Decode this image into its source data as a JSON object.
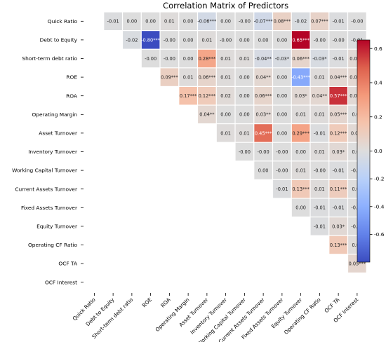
{
  "chart_data": {
    "type": "heatmap",
    "title": "Correlation Matrix of Predictors",
    "rows": [
      "Quick Ratio",
      "Debt to Equity",
      "Short-term debt ratio",
      "ROE",
      "ROA",
      "Operating Margin",
      "Asset Turnover",
      "Inventory Turnover",
      "Working Capital Turnover",
      "Current Assets Turnover",
      "Fixed Assets Turnover",
      "Equity Turnover",
      "Operating CF Ratio",
      "OCF TA",
      "OCF Interest"
    ],
    "columns": [
      "Quick Ratio",
      "Debt to Equity",
      "Short-term debt ratio",
      "ROE",
      "ROA",
      "Operating Margin",
      "Asset Turnover",
      "Inventory Turnover",
      "Working Capital Turnover",
      "Current Assets Turnover",
      "Fixed Assets Turnover",
      "Equity Turnover",
      "Operating CF Ratio",
      "OCF TA",
      "OCF Interest"
    ],
    "cells": [
      {
        "row": 0,
        "col": 1,
        "value": -0.01,
        "label": "-0.01"
      },
      {
        "row": 0,
        "col": 2,
        "value": 0.0,
        "label": "0.00"
      },
      {
        "row": 0,
        "col": 3,
        "value": 0.0,
        "label": "0.00"
      },
      {
        "row": 0,
        "col": 4,
        "value": 0.01,
        "label": "0.01"
      },
      {
        "row": 0,
        "col": 5,
        "value": 0.0,
        "label": "0.00"
      },
      {
        "row": 0,
        "col": 6,
        "value": -0.06,
        "label": "-0.06***"
      },
      {
        "row": 0,
        "col": 7,
        "value": 0.0,
        "label": "0.00"
      },
      {
        "row": 0,
        "col": 8,
        "value": -0.0,
        "label": "-0.00"
      },
      {
        "row": 0,
        "col": 9,
        "value": -0.07,
        "label": "-0.07***"
      },
      {
        "row": 0,
        "col": 10,
        "value": 0.08,
        "label": "0.08***"
      },
      {
        "row": 0,
        "col": 11,
        "value": -0.02,
        "label": "-0.02"
      },
      {
        "row": 0,
        "col": 12,
        "value": 0.07,
        "label": "0.07***"
      },
      {
        "row": 0,
        "col": 13,
        "value": -0.01,
        "label": "-0.01"
      },
      {
        "row": 0,
        "col": 14,
        "value": -0.0,
        "label": "-0.00"
      },
      {
        "row": 1,
        "col": 2,
        "value": -0.02,
        "label": "-0.02"
      },
      {
        "row": 1,
        "col": 3,
        "value": -0.8,
        "label": "-0.80***"
      },
      {
        "row": 1,
        "col": 4,
        "value": -0.0,
        "label": "-0.00"
      },
      {
        "row": 1,
        "col": 5,
        "value": 0.0,
        "label": "0.00"
      },
      {
        "row": 1,
        "col": 6,
        "value": 0.01,
        "label": "0.01"
      },
      {
        "row": 1,
        "col": 7,
        "value": -0.0,
        "label": "-0.00"
      },
      {
        "row": 1,
        "col": 8,
        "value": 0.0,
        "label": "0.00"
      },
      {
        "row": 1,
        "col": 9,
        "value": 0.0,
        "label": "0.00"
      },
      {
        "row": 1,
        "col": 10,
        "value": 0.0,
        "label": "0.00"
      },
      {
        "row": 1,
        "col": 11,
        "value": 0.65,
        "label": "0.65***"
      },
      {
        "row": 1,
        "col": 12,
        "value": -0.0,
        "label": "-0.00"
      },
      {
        "row": 1,
        "col": 13,
        "value": -0.0,
        "label": "-0.00"
      },
      {
        "row": 1,
        "col": 14,
        "value": -0.01,
        "label": "-0.01"
      },
      {
        "row": 2,
        "col": 3,
        "value": -0.0,
        "label": "-0.00"
      },
      {
        "row": 2,
        "col": 4,
        "value": -0.0,
        "label": "-0.00"
      },
      {
        "row": 2,
        "col": 5,
        "value": 0.0,
        "label": "0.00"
      },
      {
        "row": 2,
        "col": 6,
        "value": 0.28,
        "label": "0.28***"
      },
      {
        "row": 2,
        "col": 7,
        "value": 0.01,
        "label": "0.01"
      },
      {
        "row": 2,
        "col": 8,
        "value": 0.01,
        "label": "0.01"
      },
      {
        "row": 2,
        "col": 9,
        "value": -0.04,
        "label": "-0.04**"
      },
      {
        "row": 2,
        "col": 10,
        "value": -0.03,
        "label": "-0.03*"
      },
      {
        "row": 2,
        "col": 11,
        "value": 0.06,
        "label": "0.06***"
      },
      {
        "row": 2,
        "col": 12,
        "value": -0.03,
        "label": "-0.03*"
      },
      {
        "row": 2,
        "col": 13,
        "value": -0.01,
        "label": "-0.01"
      },
      {
        "row": 2,
        "col": 14,
        "value": 0.03,
        "label": "0.03**"
      },
      {
        "row": 3,
        "col": 4,
        "value": 0.09,
        "label": "0.09***"
      },
      {
        "row": 3,
        "col": 5,
        "value": 0.01,
        "label": "0.01"
      },
      {
        "row": 3,
        "col": 6,
        "value": 0.06,
        "label": "0.06***"
      },
      {
        "row": 3,
        "col": 7,
        "value": 0.01,
        "label": "0.01"
      },
      {
        "row": 3,
        "col": 8,
        "value": 0.0,
        "label": "0.00"
      },
      {
        "row": 3,
        "col": 9,
        "value": 0.04,
        "label": "0.04**"
      },
      {
        "row": 3,
        "col": 10,
        "value": 0.0,
        "label": "0.00"
      },
      {
        "row": 3,
        "col": 11,
        "value": -0.43,
        "label": "-0.43***"
      },
      {
        "row": 3,
        "col": 12,
        "value": 0.01,
        "label": "0.01"
      },
      {
        "row": 3,
        "col": 13,
        "value": 0.04,
        "label": "0.04***"
      },
      {
        "row": 3,
        "col": 14,
        "value": 0.04,
        "label": "0.04**"
      },
      {
        "row": 4,
        "col": 5,
        "value": 0.17,
        "label": "0.17***"
      },
      {
        "row": 4,
        "col": 6,
        "value": 0.12,
        "label": "0.12***"
      },
      {
        "row": 4,
        "col": 7,
        "value": 0.02,
        "label": "0.02"
      },
      {
        "row": 4,
        "col": 8,
        "value": 0.0,
        "label": "0.00"
      },
      {
        "row": 4,
        "col": 9,
        "value": 0.06,
        "label": "0.06***"
      },
      {
        "row": 4,
        "col": 10,
        "value": 0.0,
        "label": "0.00"
      },
      {
        "row": 4,
        "col": 11,
        "value": 0.03,
        "label": "0.03*"
      },
      {
        "row": 4,
        "col": 12,
        "value": 0.04,
        "label": "0.04**"
      },
      {
        "row": 4,
        "col": 13,
        "value": 0.57,
        "label": "0.57***"
      },
      {
        "row": 4,
        "col": 14,
        "value": 0.03,
        "label": "0.03**"
      },
      {
        "row": 5,
        "col": 6,
        "value": 0.04,
        "label": "0.04**"
      },
      {
        "row": 5,
        "col": 7,
        "value": 0.0,
        "label": "0.00"
      },
      {
        "row": 5,
        "col": 8,
        "value": 0.0,
        "label": "0.00"
      },
      {
        "row": 5,
        "col": 9,
        "value": 0.03,
        "label": "0.03**"
      },
      {
        "row": 5,
        "col": 10,
        "value": 0.0,
        "label": "0.00"
      },
      {
        "row": 5,
        "col": 11,
        "value": 0.01,
        "label": "0.01"
      },
      {
        "row": 5,
        "col": 12,
        "value": 0.01,
        "label": "0.01"
      },
      {
        "row": 5,
        "col": 13,
        "value": 0.05,
        "label": "0.05***"
      },
      {
        "row": 5,
        "col": 14,
        "value": 0.0,
        "label": "0.00"
      },
      {
        "row": 6,
        "col": 7,
        "value": 0.01,
        "label": "0.01"
      },
      {
        "row": 6,
        "col": 8,
        "value": 0.01,
        "label": "0.01"
      },
      {
        "row": 6,
        "col": 9,
        "value": 0.45,
        "label": "0.45***"
      },
      {
        "row": 6,
        "col": 10,
        "value": 0.0,
        "label": "0.00"
      },
      {
        "row": 6,
        "col": 11,
        "value": 0.29,
        "label": "0.29***"
      },
      {
        "row": 6,
        "col": 12,
        "value": -0.01,
        "label": "-0.01"
      },
      {
        "row": 6,
        "col": 13,
        "value": 0.12,
        "label": "0.12***"
      },
      {
        "row": 6,
        "col": 14,
        "value": 0.03,
        "label": "0.03*"
      },
      {
        "row": 7,
        "col": 8,
        "value": -0.0,
        "label": "-0.00"
      },
      {
        "row": 7,
        "col": 9,
        "value": -0.0,
        "label": "-0.00"
      },
      {
        "row": 7,
        "col": 10,
        "value": -0.0,
        "label": "-0.00"
      },
      {
        "row": 7,
        "col": 11,
        "value": 0.0,
        "label": "0.00"
      },
      {
        "row": 7,
        "col": 12,
        "value": 0.01,
        "label": "0.01"
      },
      {
        "row": 7,
        "col": 13,
        "value": 0.03,
        "label": "0.03*"
      },
      {
        "row": 7,
        "col": 14,
        "value": 0.0,
        "label": "0.00"
      },
      {
        "row": 8,
        "col": 9,
        "value": 0.0,
        "label": "0.00"
      },
      {
        "row": 8,
        "col": 10,
        "value": -0.0,
        "label": "-0.00"
      },
      {
        "row": 8,
        "col": 11,
        "value": 0.01,
        "label": "0.01"
      },
      {
        "row": 8,
        "col": 12,
        "value": -0.0,
        "label": "-0.00"
      },
      {
        "row": 8,
        "col": 13,
        "value": -0.01,
        "label": "-0.01"
      },
      {
        "row": 8,
        "col": 14,
        "value": -0.0,
        "label": "-0.00"
      },
      {
        "row": 9,
        "col": 10,
        "value": -0.01,
        "label": "-0.01"
      },
      {
        "row": 9,
        "col": 11,
        "value": 0.13,
        "label": "0.13***"
      },
      {
        "row": 9,
        "col": 12,
        "value": 0.01,
        "label": "0.01"
      },
      {
        "row": 9,
        "col": 13,
        "value": 0.11,
        "label": "0.11***"
      },
      {
        "row": 9,
        "col": 14,
        "value": 0.0,
        "label": "0.00"
      },
      {
        "row": 10,
        "col": 11,
        "value": 0.0,
        "label": "0.00"
      },
      {
        "row": 10,
        "col": 12,
        "value": -0.01,
        "label": "-0.01"
      },
      {
        "row": 10,
        "col": 13,
        "value": -0.01,
        "label": "-0.01"
      },
      {
        "row": 10,
        "col": 14,
        "value": -0.0,
        "label": "-0.00"
      },
      {
        "row": 11,
        "col": 12,
        "value": -0.01,
        "label": "-0.01"
      },
      {
        "row": 11,
        "col": 13,
        "value": 0.03,
        "label": "0.03*"
      },
      {
        "row": 11,
        "col": 14,
        "value": -0.0,
        "label": "-0.00"
      },
      {
        "row": 12,
        "col": 13,
        "value": 0.13,
        "label": "0.13***"
      },
      {
        "row": 12,
        "col": 14,
        "value": 0.01,
        "label": "0.01"
      },
      {
        "row": 13,
        "col": 14,
        "value": 0.05,
        "label": "0.05***"
      }
    ],
    "colorbar": {
      "colormap": "coolwarm",
      "range": [
        -0.8,
        0.65
      ],
      "ticks": [
        -0.6,
        -0.4,
        -0.2,
        0.0,
        0.2,
        0.4,
        0.6
      ],
      "tick_labels": [
        "-0.6",
        "-0.4",
        "-0.2",
        "0.0",
        "0.2",
        "0.4",
        "0.6"
      ]
    }
  }
}
